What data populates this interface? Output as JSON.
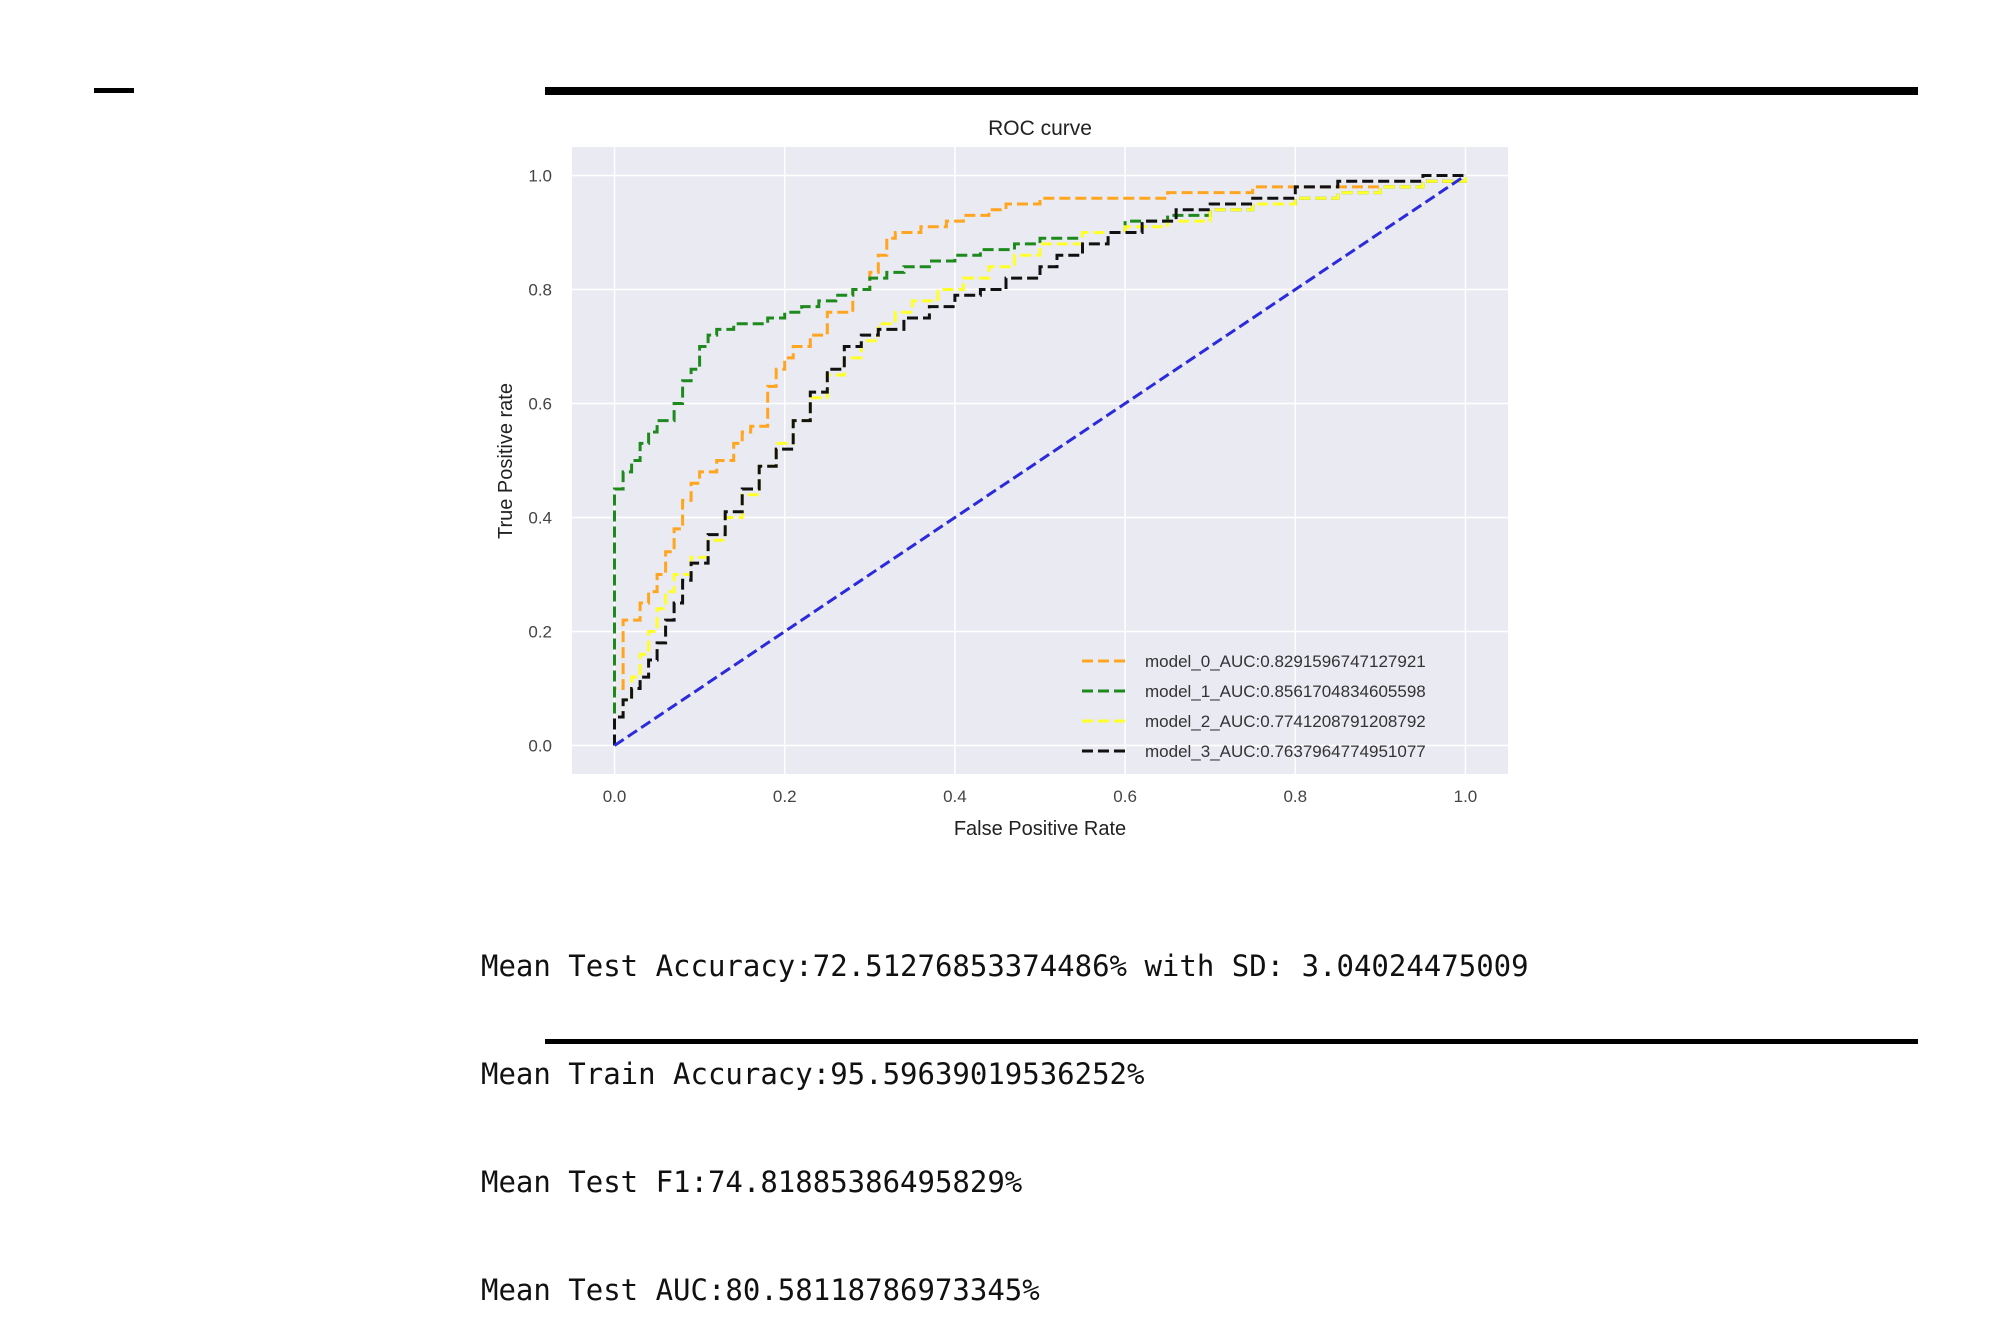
{
  "chart_data": {
    "type": "line",
    "title": "ROC curve",
    "xlabel": "False Positive Rate",
    "ylabel": "True Positive rate",
    "xlim": [
      -0.05,
      1.05
    ],
    "ylim": [
      -0.05,
      1.05
    ],
    "xticks": [
      "0.0",
      "0.2",
      "0.4",
      "0.6",
      "0.8",
      "1.0"
    ],
    "yticks": [
      "0.0",
      "0.2",
      "0.4",
      "0.6",
      "0.8",
      "1.0"
    ],
    "grid": true,
    "legend_position": "lower-right",
    "series": [
      {
        "name": "model_0_AUC:0.8291596747127921",
        "color": "#ffa51f",
        "dash": "dashed",
        "x": [
          0.0,
          0.0,
          0.01,
          0.01,
          0.03,
          0.04,
          0.05,
          0.06,
          0.07,
          0.08,
          0.09,
          0.1,
          0.12,
          0.14,
          0.15,
          0.16,
          0.18,
          0.18,
          0.19,
          0.2,
          0.21,
          0.23,
          0.25,
          0.28,
          0.3,
          0.31,
          0.32,
          0.33,
          0.36,
          0.39,
          0.41,
          0.44,
          0.46,
          0.5,
          0.55,
          0.6,
          0.65,
          0.7,
          0.75,
          0.8,
          0.85,
          0.9,
          0.95,
          1.0
        ],
        "y": [
          0.0,
          0.1,
          0.18,
          0.22,
          0.25,
          0.27,
          0.3,
          0.34,
          0.38,
          0.43,
          0.46,
          0.48,
          0.5,
          0.53,
          0.55,
          0.56,
          0.6,
          0.63,
          0.66,
          0.68,
          0.7,
          0.72,
          0.76,
          0.8,
          0.83,
          0.86,
          0.89,
          0.9,
          0.91,
          0.92,
          0.93,
          0.94,
          0.95,
          0.96,
          0.96,
          0.96,
          0.97,
          0.97,
          0.98,
          0.98,
          0.98,
          0.98,
          0.99,
          1.0
        ]
      },
      {
        "name": "model_1_AUC:0.8561704834605598",
        "color": "#1e8a1e",
        "dash": "dashed",
        "x": [
          0.0,
          0.0,
          0.0,
          0.01,
          0.02,
          0.03,
          0.04,
          0.05,
          0.07,
          0.08,
          0.09,
          0.1,
          0.11,
          0.12,
          0.14,
          0.16,
          0.18,
          0.2,
          0.22,
          0.24,
          0.26,
          0.28,
          0.3,
          0.32,
          0.34,
          0.37,
          0.4,
          0.43,
          0.47,
          0.5,
          0.55,
          0.6,
          0.65,
          0.7,
          0.75,
          0.8,
          0.85,
          0.9,
          0.95,
          1.0
        ],
        "y": [
          0.0,
          0.25,
          0.45,
          0.48,
          0.5,
          0.53,
          0.55,
          0.57,
          0.6,
          0.64,
          0.66,
          0.7,
          0.72,
          0.73,
          0.74,
          0.74,
          0.75,
          0.76,
          0.77,
          0.78,
          0.79,
          0.8,
          0.82,
          0.83,
          0.84,
          0.85,
          0.86,
          0.87,
          0.88,
          0.89,
          0.9,
          0.92,
          0.93,
          0.94,
          0.95,
          0.96,
          0.97,
          0.98,
          0.99,
          1.0
        ]
      },
      {
        "name": "model_2_AUC:0.7741208791208792",
        "color": "#ffff2a",
        "dash": "dashed",
        "x": [
          0.0,
          0.0,
          0.01,
          0.02,
          0.03,
          0.04,
          0.05,
          0.06,
          0.07,
          0.09,
          0.11,
          0.13,
          0.15,
          0.17,
          0.19,
          0.21,
          0.23,
          0.25,
          0.27,
          0.29,
          0.31,
          0.33,
          0.35,
          0.38,
          0.41,
          0.44,
          0.47,
          0.5,
          0.55,
          0.6,
          0.65,
          0.7,
          0.75,
          0.8,
          0.85,
          0.9,
          0.95,
          1.0
        ],
        "y": [
          0.0,
          0.05,
          0.08,
          0.12,
          0.16,
          0.2,
          0.24,
          0.27,
          0.3,
          0.33,
          0.36,
          0.4,
          0.44,
          0.49,
          0.53,
          0.57,
          0.61,
          0.65,
          0.68,
          0.71,
          0.74,
          0.76,
          0.78,
          0.8,
          0.82,
          0.84,
          0.86,
          0.88,
          0.9,
          0.91,
          0.92,
          0.94,
          0.95,
          0.96,
          0.97,
          0.98,
          0.99,
          1.0
        ]
      },
      {
        "name": "model_3_AUC:0.7637964774951077",
        "color": "#111111",
        "dash": "dashed",
        "x": [
          0.0,
          0.0,
          0.01,
          0.02,
          0.03,
          0.04,
          0.05,
          0.06,
          0.07,
          0.08,
          0.09,
          0.11,
          0.13,
          0.15,
          0.17,
          0.19,
          0.21,
          0.23,
          0.25,
          0.27,
          0.29,
          0.31,
          0.34,
          0.37,
          0.4,
          0.43,
          0.46,
          0.5,
          0.52,
          0.55,
          0.58,
          0.62,
          0.66,
          0.7,
          0.75,
          0.8,
          0.85,
          0.9,
          0.95,
          1.0
        ],
        "y": [
          0.0,
          0.05,
          0.08,
          0.1,
          0.12,
          0.15,
          0.18,
          0.22,
          0.25,
          0.29,
          0.32,
          0.37,
          0.41,
          0.45,
          0.49,
          0.52,
          0.57,
          0.62,
          0.66,
          0.7,
          0.72,
          0.73,
          0.75,
          0.77,
          0.79,
          0.8,
          0.82,
          0.84,
          0.86,
          0.88,
          0.9,
          0.92,
          0.94,
          0.95,
          0.96,
          0.98,
          0.99,
          0.99,
          1.0,
          1.0
        ]
      },
      {
        "name": "",
        "color": "#2b2bdc",
        "dash": "dashed",
        "x": [
          0,
          1
        ],
        "y": [
          0,
          1
        ]
      }
    ]
  },
  "stats": {
    "lines": [
      "Mean Test Accuracy:72.51276853374486% with SD: 3.04024475009",
      "Mean Train Accuracy:95.59639019536252%",
      "Mean Test F1:74.81885386495829%",
      "Mean Test AUC:80.58118786973345%"
    ]
  }
}
